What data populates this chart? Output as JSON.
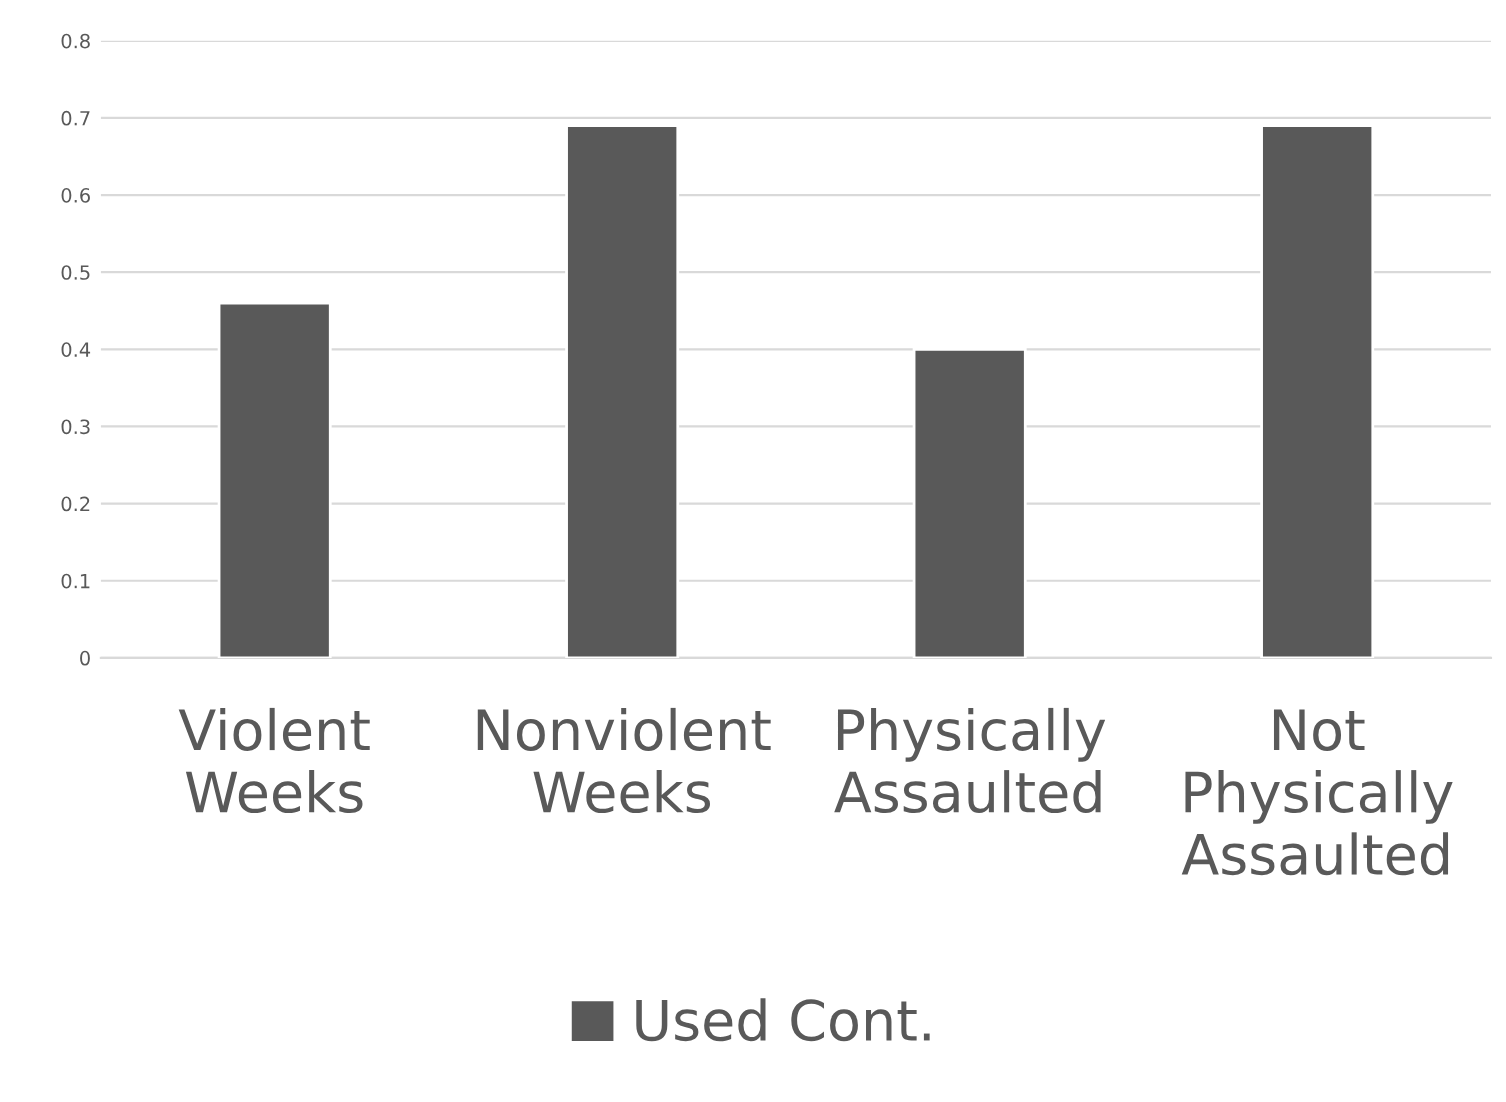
{
  "chart_data": {
    "type": "bar",
    "categories": [
      "Violent\nWeeks",
      "Nonviolent\nWeeks",
      "Physically\nAssaulted",
      "Not\nPhysically\nAssaulted"
    ],
    "series": [
      {
        "name": "Used Cont.",
        "color": "#595959",
        "values": [
          0.46,
          0.69,
          0.4,
          0.69
        ]
      }
    ],
    "ylim": [
      0,
      0.8
    ],
    "yticks": [
      0,
      0.1,
      0.2,
      0.3,
      0.4,
      0.5,
      0.6,
      0.7,
      0.8
    ],
    "grid": "y",
    "legend": "bottom"
  }
}
